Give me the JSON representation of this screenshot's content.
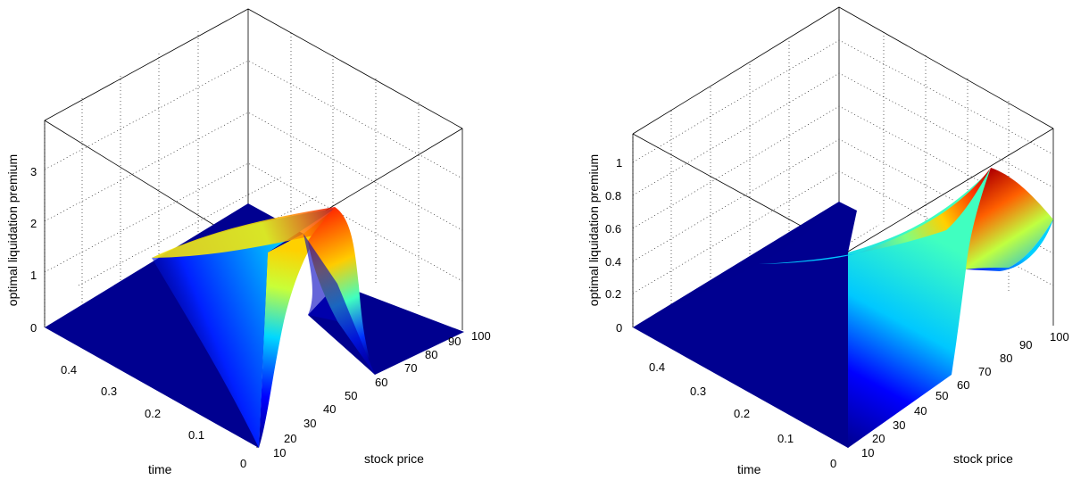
{
  "chart_data": [
    {
      "type": "surface",
      "title": "",
      "xlabel": "stock price",
      "ylabel": "time",
      "zlabel": "optimal liquidation premium",
      "x_ticks": [
        "10",
        "20",
        "30",
        "40",
        "50",
        "60",
        "70",
        "80",
        "90",
        "100"
      ],
      "y_ticks": [
        "0",
        "0.1",
        "0.2",
        "0.3",
        "0.4"
      ],
      "z_ticks": [
        "0",
        "1",
        "2",
        "3"
      ],
      "xlim": [
        0,
        100
      ],
      "ylim": [
        0,
        0.5
      ],
      "zlim": [
        0,
        3.8
      ],
      "grid": true,
      "colormap": "jet",
      "surface": {
        "description_points": [
          {
            "price": 50,
            "time": 0,
            "premium": 0.0
          },
          {
            "price": 62,
            "time": 0,
            "premium": 0.0
          },
          {
            "price": 100,
            "time": 0.5,
            "premium": 0.0
          },
          {
            "price": 82,
            "time": 0.5,
            "premium": 2.0
          },
          {
            "price": 70,
            "time": 0.5,
            "premium": 0.0
          }
        ]
      }
    },
    {
      "type": "surface",
      "title": "",
      "xlabel": "stock price",
      "ylabel": "time",
      "zlabel": "optimal liquidation premium",
      "x_ticks": [
        "10",
        "20",
        "30",
        "40",
        "50",
        "60",
        "70",
        "80",
        "90",
        "100"
      ],
      "y_ticks": [
        "0",
        "0.1",
        "0.2",
        "0.3",
        "0.4"
      ],
      "z_ticks": [
        "0",
        "0.2",
        "0.4",
        "0.6",
        "0.8",
        "1"
      ],
      "xlim": [
        0,
        100
      ],
      "ylim": [
        0,
        0.5
      ],
      "zlim": [
        0,
        1.15
      ],
      "grid": true,
      "colormap": "jet",
      "surface": {
        "description_points": [
          {
            "price": 50,
            "time": 0,
            "premium": 0.0
          },
          {
            "price": 100,
            "time": 0,
            "premium": 0.0
          },
          {
            "price": 100,
            "time": 0.5,
            "premium": 0.62
          },
          {
            "price": 90,
            "time": 0.5,
            "premium": 1.0
          },
          {
            "price": 72,
            "time": 0.5,
            "premium": 0.15
          }
        ]
      }
    }
  ]
}
